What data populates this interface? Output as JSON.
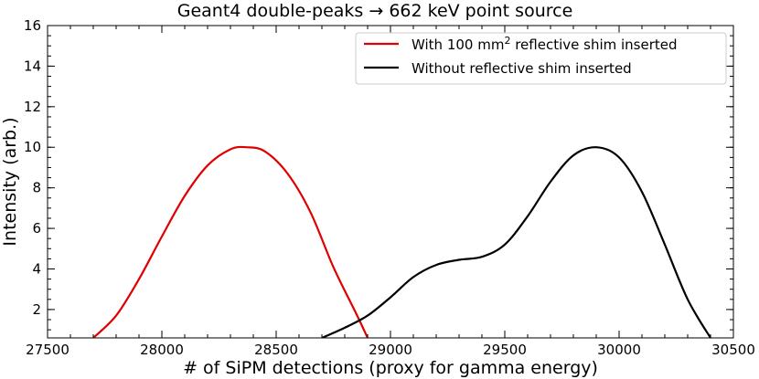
{
  "chart_data": {
    "type": "line",
    "title": "Geant4 double-peaks → 662 keV point source",
    "xlabel": "# of SiPM detections (proxy for gamma energy)",
    "ylabel": "Intensity (arb.)",
    "xlim": [
      27500,
      30500
    ],
    "ylim": [
      0.6,
      16
    ],
    "xticks": [
      27500,
      28000,
      28500,
      29000,
      29500,
      30000,
      30500
    ],
    "yticks": [
      2,
      4,
      6,
      8,
      10,
      12,
      14,
      16
    ],
    "x_minor_step": 100,
    "y_minor_step": 0.5,
    "grid": false,
    "legend_position": "top-right",
    "series": [
      {
        "name_prefix": "With 100 mm",
        "name_sup": "2",
        "name_suffix": " reflective shim inserted",
        "color": "#e00000",
        "points": [
          [
            27700,
            0.6
          ],
          [
            27800,
            1.7
          ],
          [
            27900,
            3.5
          ],
          [
            28000,
            5.6
          ],
          [
            28100,
            7.6
          ],
          [
            28200,
            9.1
          ],
          [
            28300,
            9.9
          ],
          [
            28370,
            10.0
          ],
          [
            28450,
            9.8
          ],
          [
            28550,
            8.7
          ],
          [
            28650,
            6.8
          ],
          [
            28750,
            4.1
          ],
          [
            28850,
            1.8
          ],
          [
            28900,
            0.6
          ]
        ]
      },
      {
        "name": "Without reflective shim inserted",
        "color": "#000000",
        "points": [
          [
            28700,
            0.6
          ],
          [
            28800,
            1.1
          ],
          [
            28900,
            1.7
          ],
          [
            29000,
            2.6
          ],
          [
            29100,
            3.6
          ],
          [
            29200,
            4.2
          ],
          [
            29300,
            4.45
          ],
          [
            29400,
            4.6
          ],
          [
            29500,
            5.2
          ],
          [
            29600,
            6.6
          ],
          [
            29700,
            8.3
          ],
          [
            29800,
            9.6
          ],
          [
            29900,
            10.0
          ],
          [
            30000,
            9.5
          ],
          [
            30100,
            7.8
          ],
          [
            30200,
            5.2
          ],
          [
            30300,
            2.5
          ],
          [
            30400,
            0.6
          ]
        ]
      }
    ]
  }
}
